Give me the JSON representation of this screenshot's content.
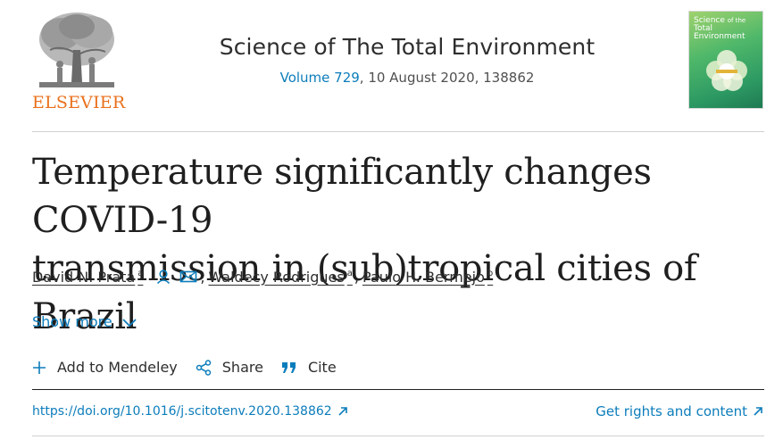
{
  "header": {
    "publisher": "ELSEVIER",
    "journal_title": "Science of The Total Environment",
    "volume_label": "Volume 729",
    "issue_info": ", 10 August 2020, 138862",
    "cover_title": "Science of the Total Environment",
    "publisher_color": "#e9711c"
  },
  "article": {
    "title_line1": "Temperature significantly changes COVID-19",
    "title_line2": "transmission in (sub)tropical cities of Brazil"
  },
  "authors": [
    {
      "name": "David N. Prata",
      "aff": "a"
    },
    {
      "name": "Waldecy Rodrigues",
      "aff": "a"
    },
    {
      "name": "Paulo H. Bermejo",
      "aff": "b"
    }
  ],
  "author_icons": [
    "person-icon",
    "mail-icon"
  ],
  "show_more": {
    "label": "Show more"
  },
  "actions": {
    "mendeley": "Add to Mendeley",
    "share": "Share",
    "cite": "Cite"
  },
  "links": {
    "doi": "https://doi.org/10.1016/j.scitotenv.2020.138862",
    "rights": "Get rights and content"
  },
  "colors": {
    "link": "#0c7dbb",
    "text": "#2e2e2e"
  }
}
